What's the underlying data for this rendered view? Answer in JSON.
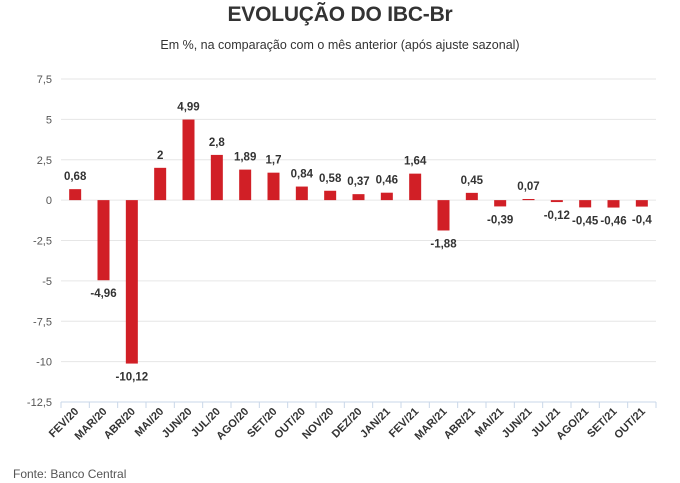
{
  "header": {
    "title": "EVOLUÇÃO DO IBC-Br",
    "subtitle": "Em %, na comparação com o mês anterior (após ajuste sazonal)"
  },
  "footer": {
    "source": "Fonte: Banco Central"
  },
  "colors": {
    "bar": "#d11f26",
    "grid": "#e6e6e6",
    "axis": "#c9d7e8"
  },
  "chart_data": {
    "type": "bar",
    "title": "EVOLUÇÃO DO IBC-Br",
    "subtitle": "Em %, na comparação com o mês anterior (após ajuste sazonal)",
    "categories": [
      "FEV/20",
      "MAR/20",
      "ABR/20",
      "MAI/20",
      "JUN/20",
      "JUL/20",
      "AGO/20",
      "SET/20",
      "OUT/20",
      "NOV/20",
      "DEZ/20",
      "JAN/21",
      "FEV/21",
      "MAR/21",
      "ABR/21",
      "MAI/21",
      "JUN/21",
      "JUL/21",
      "AGO/21",
      "SET/21",
      "OUT/21"
    ],
    "values": [
      0.68,
      -4.96,
      -10.12,
      2,
      4.99,
      2.8,
      1.89,
      1.7,
      0.84,
      0.58,
      0.37,
      0.46,
      1.64,
      -1.88,
      0.45,
      -0.39,
      0.07,
      -0.12,
      -0.45,
      -0.46,
      -0.4
    ],
    "data_labels": [
      "0,68",
      "-4,96",
      "-10,12",
      "2",
      "4,99",
      "2,8",
      "1,89",
      "1,7",
      "0,84",
      "0,58",
      "0,37",
      "0,46",
      "1,64",
      "-1,88",
      "0,45",
      "-0,39",
      "0,07",
      "-0,12",
      "-0,45",
      "-0,46",
      "-0,4"
    ],
    "ylim": [
      -12.5,
      7.5
    ],
    "yticks": [
      7.5,
      5,
      2.5,
      0,
      -2.5,
      -5,
      -7.5,
      -10,
      -12.5
    ],
    "ytick_labels": [
      "7,5",
      "5",
      "2,5",
      "0",
      "-2,5",
      "-5",
      "-7,5",
      "-10",
      "-12,5"
    ],
    "xlabel": "",
    "ylabel": "",
    "grid": true,
    "legend": "none"
  }
}
